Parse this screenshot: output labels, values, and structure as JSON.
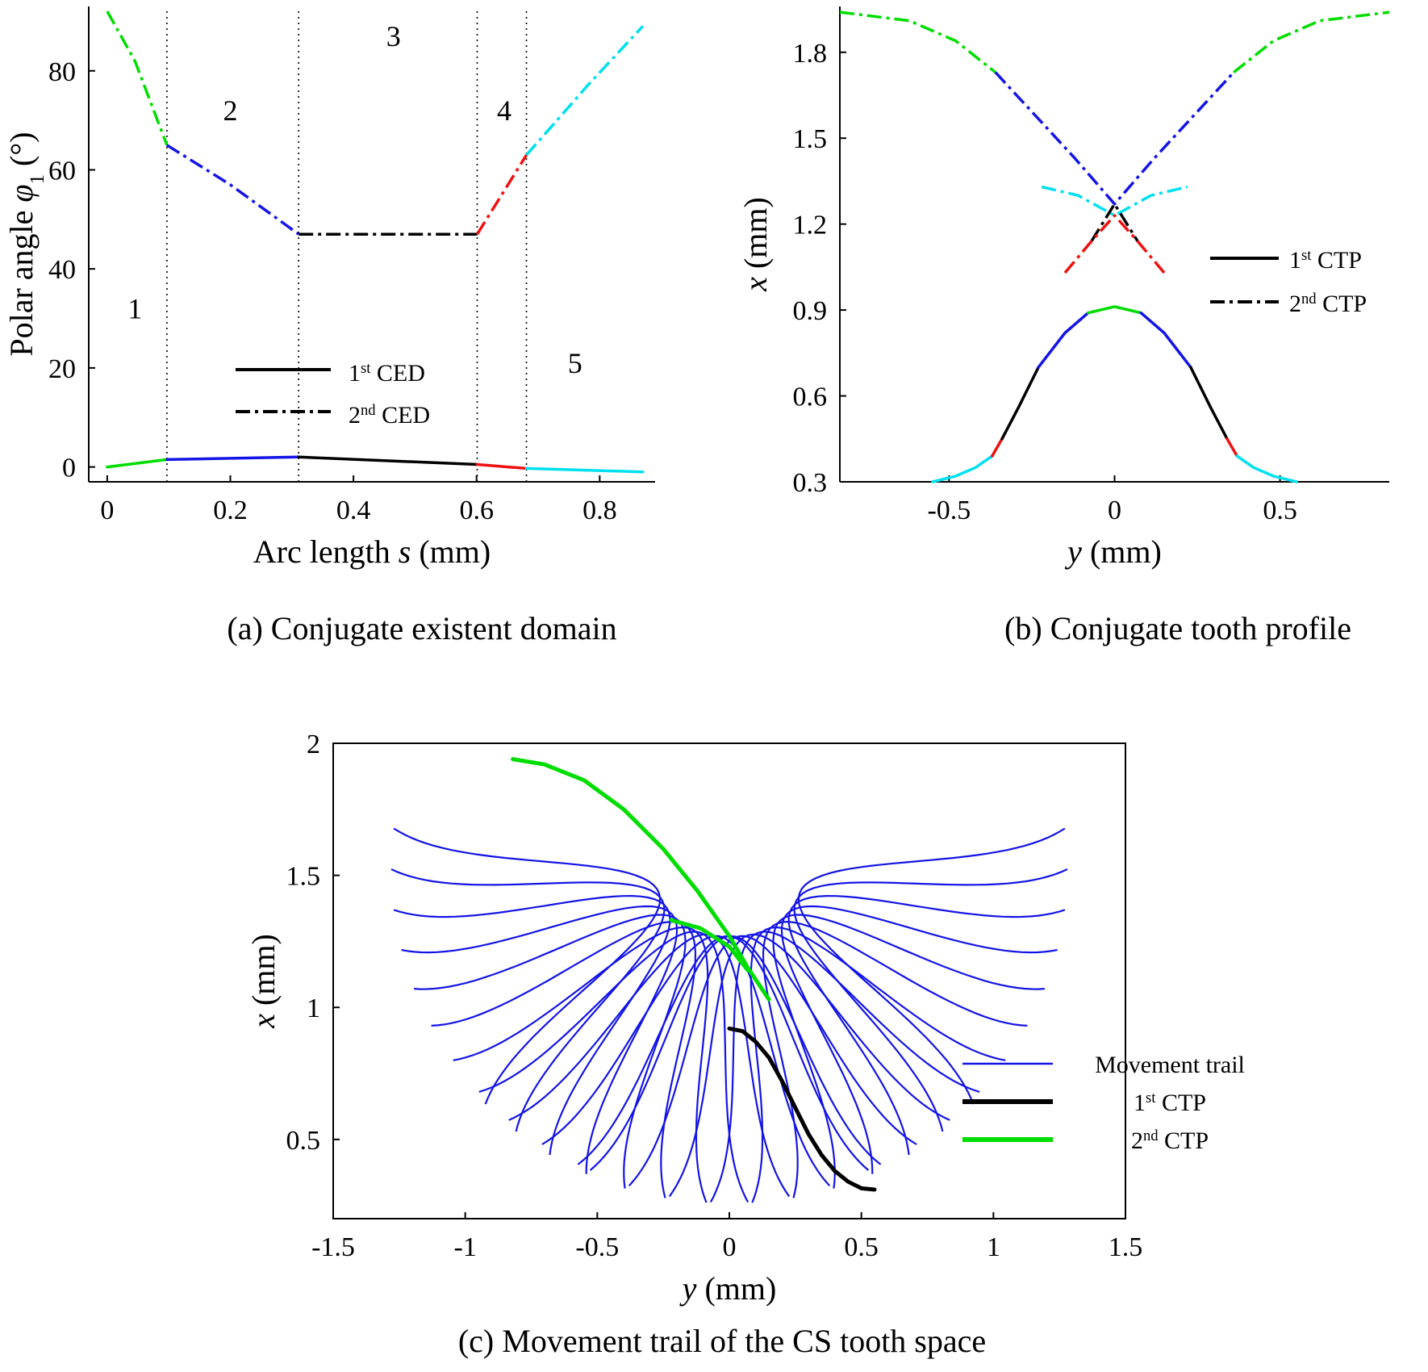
{
  "colors": {
    "black": "#000000",
    "blue": "#1414e6",
    "green": "#00dd00",
    "red": "#ee1111",
    "cyan": "#00e0ee"
  },
  "chart_data": [
    {
      "id": "a",
      "type": "line",
      "caption": "(a) Conjugate existent domain",
      "xlabel_pre": "Arc length ",
      "xlabel_var": "s",
      "xlabel_post": " (mm)",
      "ylabel_pre": "Polar angle ",
      "ylabel_var": "φ",
      "ylabel_sub": "1",
      "ylabel_post": " (°)",
      "xlim": [
        -0.03,
        0.89
      ],
      "ylim": [
        -3,
        93
      ],
      "xticks": [
        0,
        0.2,
        0.4,
        0.6,
        0.8
      ],
      "yticks": [
        0,
        20,
        40,
        60,
        80
      ],
      "region_boundaries": [
        0.097,
        0.311,
        0.601,
        0.681
      ],
      "region_labels": [
        {
          "text": "1",
          "x": 0.045,
          "y": 30
        },
        {
          "text": "2",
          "x": 0.2,
          "y": 70
        },
        {
          "text": "3",
          "x": 0.465,
          "y": 85
        },
        {
          "text": "4",
          "x": 0.645,
          "y": 70
        },
        {
          "text": "5",
          "x": 0.76,
          "y": 19
        }
      ],
      "legend": [
        {
          "sup": "st",
          "pre": "1",
          "post": " CED",
          "dash": "solid"
        },
        {
          "sup": "nd",
          "pre": "2",
          "post": " CED",
          "dash": "dashdot"
        }
      ],
      "series": [
        {
          "color": "green",
          "dash": "solid",
          "points": [
            [
              0,
              0
            ],
            [
              0.097,
              1.5
            ]
          ]
        },
        {
          "color": "blue",
          "dash": "solid",
          "points": [
            [
              0.097,
              1.5
            ],
            [
              0.311,
              2
            ]
          ]
        },
        {
          "color": "black",
          "dash": "solid",
          "points": [
            [
              0.311,
              2
            ],
            [
              0.601,
              0.5
            ]
          ]
        },
        {
          "color": "red",
          "dash": "solid",
          "points": [
            [
              0.601,
              0.5
            ],
            [
              0.681,
              -0.3
            ]
          ]
        },
        {
          "color": "cyan",
          "dash": "solid",
          "points": [
            [
              0.681,
              -0.3
            ],
            [
              0.87,
              -1
            ]
          ]
        },
        {
          "color": "green",
          "dash": "dashdot",
          "points": [
            [
              0,
              92
            ],
            [
              0.045,
              82
            ],
            [
              0.097,
              65
            ]
          ]
        },
        {
          "color": "blue",
          "dash": "dashdot",
          "points": [
            [
              0.097,
              65
            ],
            [
              0.2,
              57
            ],
            [
              0.311,
              47
            ]
          ]
        },
        {
          "color": "black",
          "dash": "dashdot",
          "points": [
            [
              0.311,
              47
            ],
            [
              0.601,
              47
            ]
          ]
        },
        {
          "color": "red",
          "dash": "dashdot",
          "points": [
            [
              0.601,
              47
            ],
            [
              0.681,
              63
            ]
          ]
        },
        {
          "color": "cyan",
          "dash": "dashdot",
          "points": [
            [
              0.681,
              63
            ],
            [
              0.78,
              77
            ],
            [
              0.87,
              89
            ]
          ]
        }
      ]
    },
    {
      "id": "b",
      "type": "line",
      "caption": "(b) Conjugate tooth profile",
      "xlabel_var": "y",
      "xlabel_post": " (mm)",
      "ylabel_var": "x",
      "ylabel_post": " (mm)",
      "xlim": [
        -0.83,
        0.83
      ],
      "ylim": [
        0.3,
        1.96
      ],
      "xticks": [
        -0.5,
        0,
        0.5
      ],
      "yticks": [
        0.3,
        0.6,
        0.9,
        1.2,
        1.5,
        1.8
      ],
      "legend": [
        {
          "sup": "st",
          "pre": "1",
          "post": " CTP",
          "dash": "solid"
        },
        {
          "sup": "nd",
          "pre": "2",
          "post": " CTP",
          "dash": "dashdot"
        }
      ],
      "series": [
        {
          "color": "cyan",
          "dash": "solid",
          "points": [
            [
              -0.55,
              0.3
            ],
            [
              -0.48,
              0.32
            ],
            [
              -0.42,
              0.35
            ],
            [
              -0.37,
              0.39
            ]
          ]
        },
        {
          "color": "red",
          "dash": "solid",
          "points": [
            [
              -0.37,
              0.39
            ],
            [
              -0.34,
              0.45
            ]
          ]
        },
        {
          "color": "black",
          "dash": "solid",
          "points": [
            [
              -0.34,
              0.45
            ],
            [
              -0.29,
              0.56
            ],
            [
              -0.23,
              0.7
            ]
          ]
        },
        {
          "color": "blue",
          "dash": "solid",
          "points": [
            [
              -0.23,
              0.7
            ],
            [
              -0.15,
              0.82
            ],
            [
              -0.08,
              0.89
            ]
          ]
        },
        {
          "color": "green",
          "dash": "solid",
          "points": [
            [
              -0.08,
              0.89
            ],
            [
              0,
              0.912
            ],
            [
              0.08,
              0.89
            ]
          ]
        },
        {
          "color": "blue",
          "dash": "solid",
          "points": [
            [
              0.08,
              0.89
            ],
            [
              0.15,
              0.82
            ],
            [
              0.23,
              0.7
            ]
          ]
        },
        {
          "color": "black",
          "dash": "solid",
          "points": [
            [
              0.23,
              0.7
            ],
            [
              0.29,
              0.56
            ],
            [
              0.34,
              0.45
            ]
          ]
        },
        {
          "color": "red",
          "dash": "solid",
          "points": [
            [
              0.34,
              0.45
            ],
            [
              0.37,
              0.39
            ]
          ]
        },
        {
          "color": "cyan",
          "dash": "solid",
          "points": [
            [
              0.37,
              0.39
            ],
            [
              0.42,
              0.35
            ],
            [
              0.48,
              0.32
            ],
            [
              0.55,
              0.3
            ]
          ]
        },
        {
          "color": "green",
          "dash": "dashdot",
          "points": [
            [
              -0.83,
              1.94
            ],
            [
              -0.62,
              1.91
            ],
            [
              -0.48,
              1.84
            ],
            [
              -0.36,
              1.73
            ]
          ]
        },
        {
          "color": "blue",
          "dash": "dashdot",
          "points": [
            [
              -0.36,
              1.73
            ],
            [
              -0.24,
              1.58
            ],
            [
              -0.12,
              1.43
            ],
            [
              0,
              1.27
            ],
            [
              0.12,
              1.43
            ],
            [
              0.24,
              1.58
            ],
            [
              0.36,
              1.73
            ]
          ]
        },
        {
          "color": "green",
          "dash": "dashdot",
          "points": [
            [
              0.36,
              1.73
            ],
            [
              0.48,
              1.84
            ],
            [
              0.62,
              1.91
            ],
            [
              0.83,
              1.94
            ]
          ]
        },
        {
          "color": "cyan",
          "dash": "dashdot",
          "points": [
            [
              -0.22,
              1.33
            ],
            [
              -0.11,
              1.3
            ],
            [
              0,
              1.23
            ],
            [
              0.11,
              1.3
            ],
            [
              0.22,
              1.33
            ]
          ]
        },
        {
          "color": "black",
          "dash": "dashdot",
          "points": [
            [
              -0.07,
              1.14
            ],
            [
              0,
              1.27
            ],
            [
              0.07,
              1.14
            ]
          ]
        },
        {
          "color": "red",
          "dash": "dashdot",
          "points": [
            [
              -0.15,
              1.03
            ],
            [
              -0.07,
              1.14
            ],
            [
              0,
              1.23
            ],
            [
              0.07,
              1.14
            ],
            [
              0.15,
              1.03
            ]
          ]
        }
      ]
    },
    {
      "id": "c",
      "type": "line",
      "caption": "(c) Movement trail of the CS tooth space",
      "xlabel_var": "y",
      "xlabel_post": " (mm)",
      "ylabel_var": "x",
      "ylabel_post": " (mm)",
      "xlim": [
        -1.5,
        1.5
      ],
      "ylim": [
        0.2,
        2
      ],
      "xticks": [
        -1.5,
        -1,
        -0.5,
        0,
        0.5,
        1,
        1.5
      ],
      "xtick_labels": [
        "-1.5",
        "-1",
        "-0.5",
        "0",
        "0.5",
        "1",
        "1.5"
      ],
      "yticks": [
        0.5,
        1,
        1.5,
        2
      ],
      "legend": [
        {
          "pre": "Movement trail",
          "sup": "",
          "post": "",
          "color": "blue",
          "width": 2.5
        },
        {
          "pre": "1",
          "sup": "st",
          "post": " CTP",
          "color": "black",
          "width": 6
        },
        {
          "pre": "2",
          "sup": "nd",
          "post": " CTP",
          "color": "green",
          "width": 6
        }
      ],
      "series": [
        {
          "name": "1st CTP",
          "color": "black",
          "width": 5,
          "points": [
            [
              0,
              0.92
            ],
            [
              0.05,
              0.91
            ],
            [
              0.1,
              0.87
            ],
            [
              0.15,
              0.81
            ],
            [
              0.2,
              0.72
            ],
            [
              0.25,
              0.62
            ],
            [
              0.3,
              0.52
            ],
            [
              0.35,
              0.44
            ],
            [
              0.4,
              0.38
            ],
            [
              0.45,
              0.34
            ],
            [
              0.5,
              0.315
            ],
            [
              0.55,
              0.31
            ]
          ]
        },
        {
          "name": "2nd CTP",
          "color": "green",
          "width": 5,
          "points": [
            [
              -0.82,
              1.94
            ],
            [
              -0.7,
              1.92
            ],
            [
              -0.55,
              1.86
            ],
            [
              -0.4,
              1.75
            ],
            [
              -0.25,
              1.6
            ],
            [
              -0.12,
              1.44
            ],
            [
              0,
              1.27
            ],
            [
              0.07,
              1.15
            ],
            [
              0.15,
              1.03
            ]
          ]
        },
        {
          "name": "2nd CTP",
          "color": "green",
          "width": 5,
          "points": [
            [
              -0.22,
              1.33
            ],
            [
              -0.11,
              1.3
            ],
            [
              0,
              1.23
            ],
            [
              0.07,
              1.14
            ]
          ]
        }
      ]
    }
  ]
}
